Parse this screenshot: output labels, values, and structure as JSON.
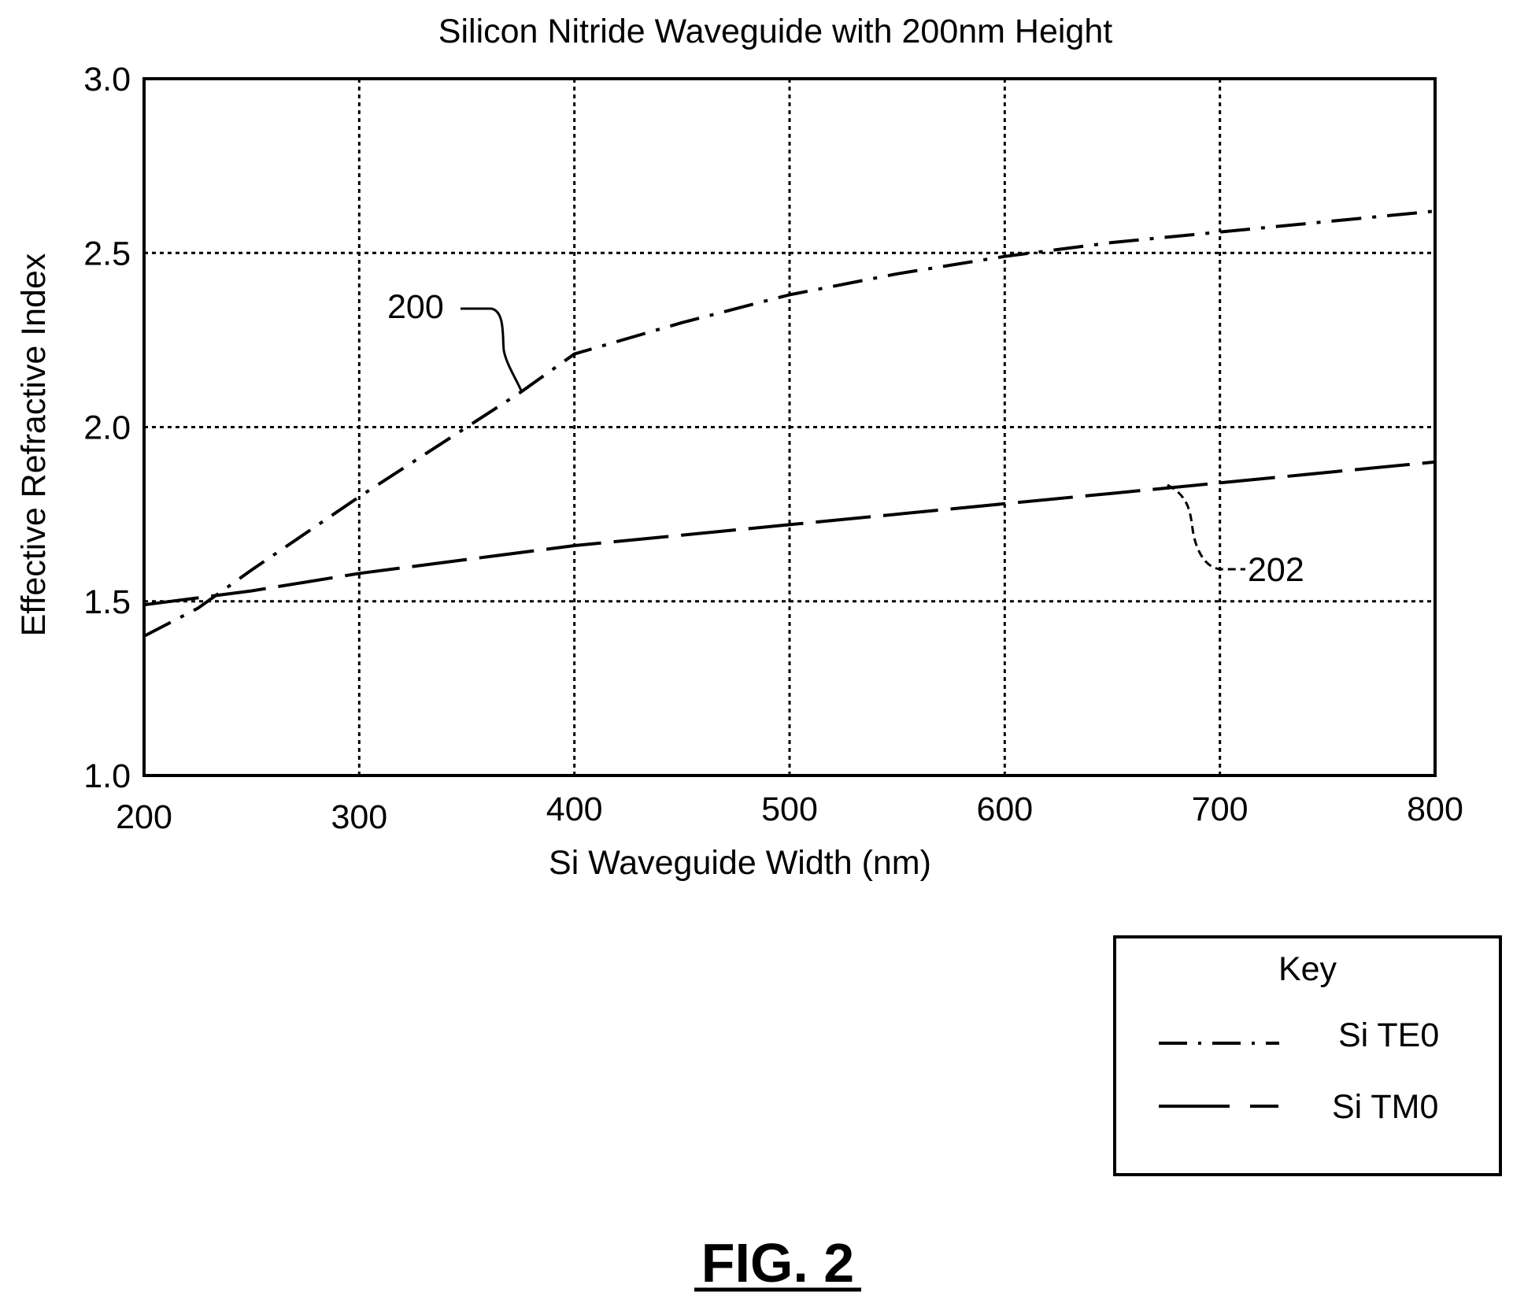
{
  "chart_data": {
    "type": "line",
    "title": "Silicon Nitride Waveguide with 200nm Height",
    "xlabel": "Si Waveguide Width (nm)",
    "ylabel": "Effective Refractive Index",
    "xlim": [
      200,
      800
    ],
    "ylim": [
      1.0,
      3.0
    ],
    "x_ticks": [
      "200",
      "300",
      "400",
      "500",
      "600",
      "700",
      "800"
    ],
    "y_ticks": [
      "1.0",
      "1.5",
      "2.0",
      "2.5",
      "3.0"
    ],
    "grid": true,
    "legend": {
      "title": "Key",
      "placement": "bottom-right, below plot"
    },
    "series": [
      {
        "name": "Si TE0",
        "style": "dash-dot",
        "callout": "200",
        "x": [
          200,
          225,
          250,
          300,
          350,
          375,
          400,
          450,
          500,
          550,
          600,
          650,
          700,
          750,
          800
        ],
        "y": [
          1.4,
          1.48,
          1.59,
          1.8,
          2.0,
          2.1,
          2.21,
          2.3,
          2.38,
          2.44,
          2.49,
          2.53,
          2.56,
          2.59,
          2.62
        ]
      },
      {
        "name": "Si TM0",
        "style": "long-dash",
        "callout": "202",
        "x": [
          200,
          250,
          300,
          350,
          400,
          450,
          500,
          550,
          600,
          650,
          700,
          750,
          800
        ],
        "y": [
          1.49,
          1.53,
          1.58,
          1.62,
          1.66,
          1.69,
          1.72,
          1.75,
          1.78,
          1.81,
          1.84,
          1.87,
          1.9
        ]
      }
    ]
  },
  "figure_label": "FIG. 2"
}
